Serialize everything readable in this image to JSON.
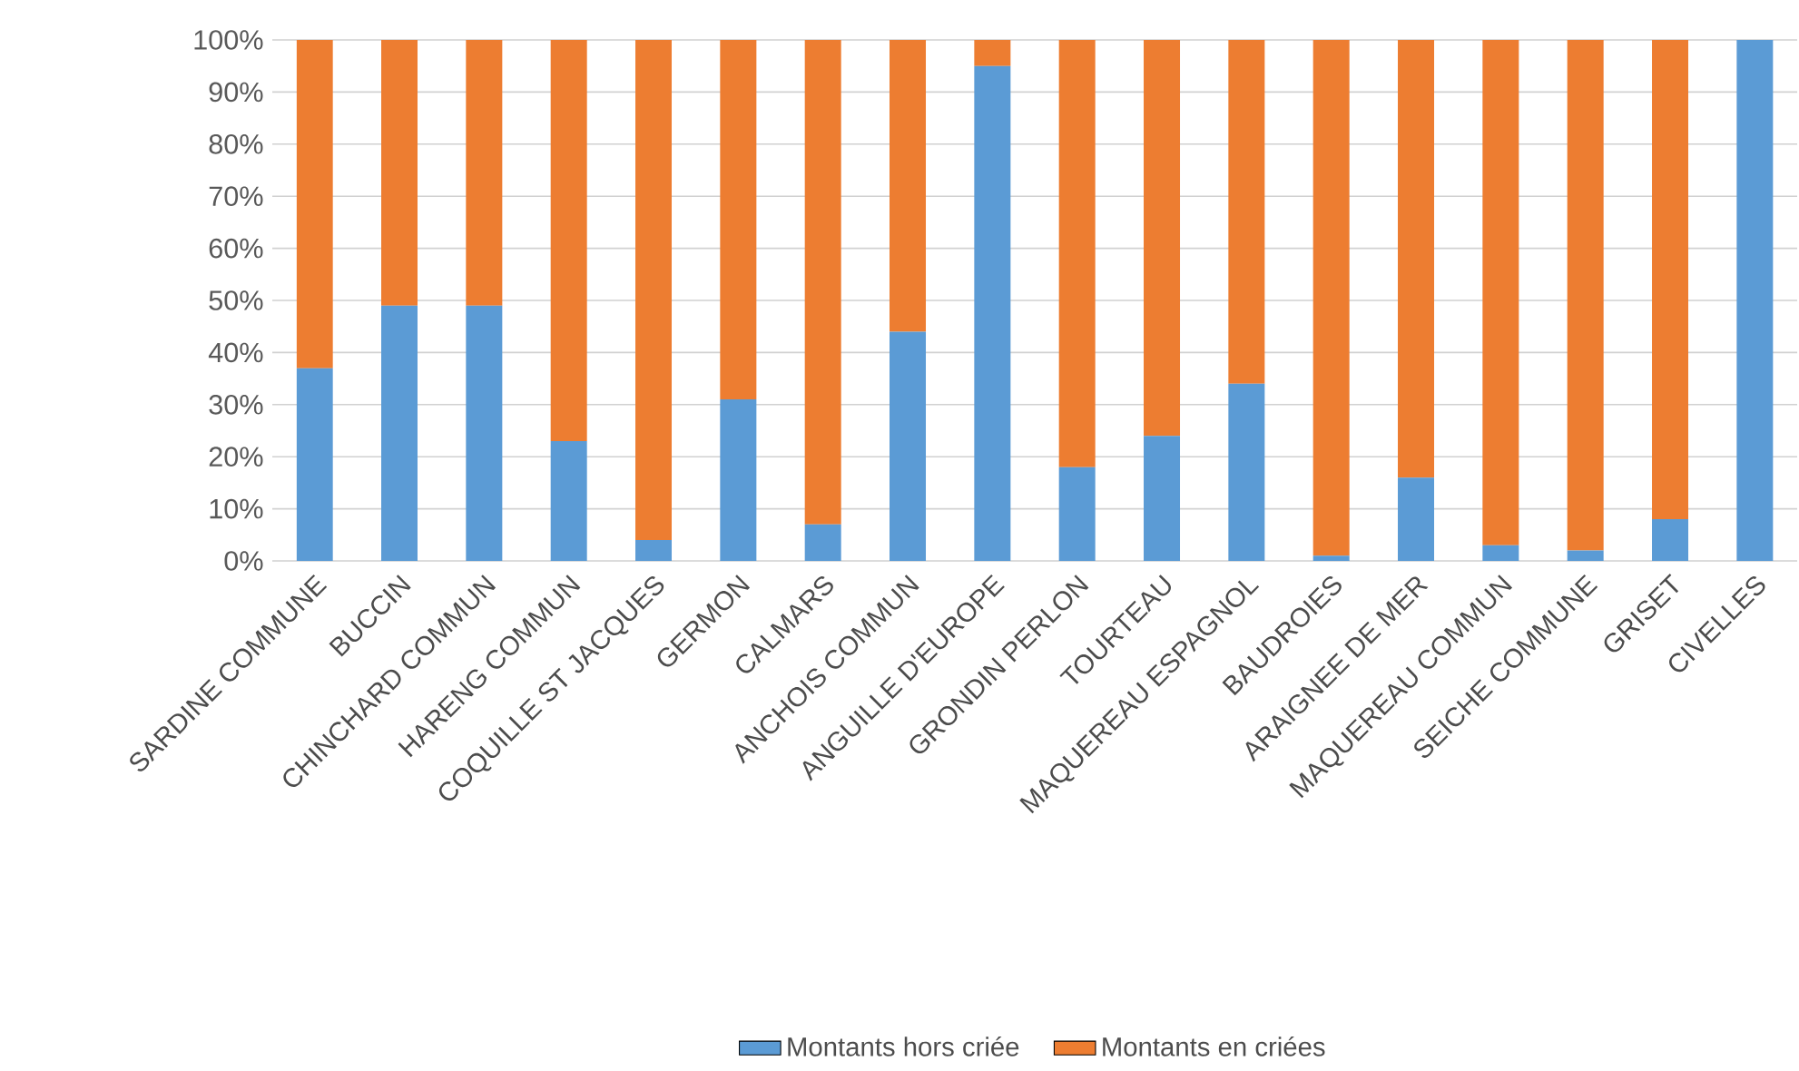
{
  "chart_data": {
    "type": "bar",
    "stacked": true,
    "categories": [
      "SARDINE COMMUNE",
      "BUCCIN",
      "CHINCHARD COMMUN",
      "HARENG COMMUN",
      "COQUILLE ST JACQUES",
      "GERMON",
      "CALMARS",
      "ANCHOIS COMMUN",
      "ANGUILLE D'EUROPE",
      "GRONDIN PERLON",
      "TOURTEAU",
      "MAQUEREAU ESPAGNOL",
      "BAUDROIES",
      "ARAIGNEE DE MER",
      "MAQUEREAU COMMUN",
      "SEICHE COMMUNE",
      "GRISET",
      "CIVELLES"
    ],
    "series": [
      {
        "name": "Montants hors criée",
        "color": "#5b9bd5",
        "values": [
          37,
          49,
          49,
          23,
          4,
          31,
          7,
          44,
          95,
          18,
          24,
          34,
          1,
          16,
          3,
          2,
          8,
          100
        ]
      },
      {
        "name": "Montants en criées",
        "color": "#ed7d31",
        "values": [
          63,
          51,
          51,
          77,
          96,
          69,
          93,
          56,
          5,
          82,
          76,
          66,
          99,
          84,
          97,
          98,
          92,
          0
        ]
      }
    ],
    "ylim": [
      0,
      100
    ],
    "yticks": [
      {
        "value": 0,
        "label": "0%"
      },
      {
        "value": 10,
        "label": "10%"
      },
      {
        "value": 20,
        "label": "20%"
      },
      {
        "value": 30,
        "label": "30%"
      },
      {
        "value": 40,
        "label": "40%"
      },
      {
        "value": 50,
        "label": "50%"
      },
      {
        "value": 60,
        "label": "60%"
      },
      {
        "value": 70,
        "label": "70%"
      },
      {
        "value": 80,
        "label": "80%"
      },
      {
        "value": 90,
        "label": "90%"
      },
      {
        "value": 100,
        "label": "100%"
      }
    ],
    "grid": "y",
    "legend": "bottom"
  }
}
